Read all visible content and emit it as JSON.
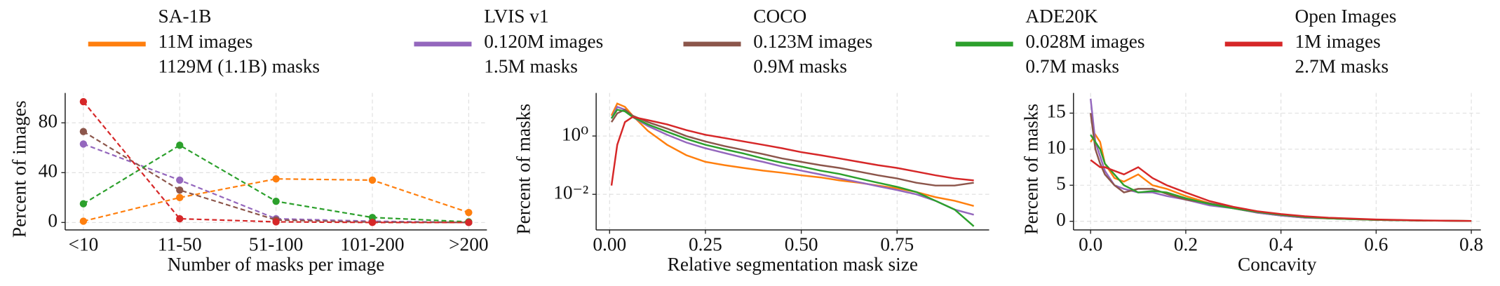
{
  "legend": {
    "entries": [
      {
        "name": "SA-1B",
        "color": "#ff7f0e",
        "lines": [
          "11M images",
          "1129M (1.1B) masks"
        ]
      },
      {
        "name": "LVIS v1",
        "color": "#9467bd",
        "lines": [
          "0.120M images",
          "1.5M masks"
        ]
      },
      {
        "name": "COCO",
        "color": "#8c564b",
        "lines": [
          "0.123M images",
          "0.9M masks"
        ]
      },
      {
        "name": "ADE20K",
        "color": "#2ca02c",
        "lines": [
          "0.028M images",
          "0.7M masks"
        ]
      },
      {
        "name": "Open Images",
        "color": "#d62728",
        "lines": [
          "1M images",
          "2.7M masks"
        ]
      }
    ]
  },
  "chart_data": [
    {
      "type": "line",
      "linestyle": "dashed",
      "markers": true,
      "grid": true,
      "x_label": "Number of masks per image",
      "y_label": "Percent of images",
      "categories": [
        "<10",
        "11-50",
        "51-100",
        "101-200",
        ">200"
      ],
      "ylim": [
        -6,
        104
      ],
      "yticks": [
        0,
        40,
        80
      ],
      "series": [
        {
          "color": "#ff7f0e",
          "values": [
            1,
            20,
            35,
            34,
            8
          ]
        },
        {
          "color": "#9467bd",
          "values": [
            63,
            34,
            3,
            1,
            0
          ]
        },
        {
          "color": "#8c564b",
          "values": [
            73,
            26,
            2,
            0.3,
            0
          ]
        },
        {
          "color": "#2ca02c",
          "values": [
            15,
            62,
            17,
            4,
            0.5
          ]
        },
        {
          "color": "#d62728",
          "values": [
            97,
            3,
            0.5,
            0,
            0
          ]
        }
      ]
    },
    {
      "type": "line",
      "log_y": true,
      "grid": true,
      "x_label": "Relative segmentation mask size",
      "y_label": "Percent of masks",
      "x": [
        0.005,
        0.02,
        0.04,
        0.06,
        0.1,
        0.15,
        0.2,
        0.25,
        0.3,
        0.35,
        0.4,
        0.45,
        0.5,
        0.55,
        0.6,
        0.65,
        0.7,
        0.75,
        0.8,
        0.85,
        0.9,
        0.95
      ],
      "xlim": [
        -0.035,
        0.99
      ],
      "xticks": [
        {
          "value": 0,
          "label": "0.00"
        },
        {
          "value": 0.25,
          "label": "0.25"
        },
        {
          "value": 0.5,
          "label": "0.50"
        },
        {
          "value": 0.75,
          "label": "0.75"
        }
      ],
      "ylim": [
        0.0006,
        30
      ],
      "yticks": [
        {
          "value": 1,
          "label": "10⁰"
        },
        {
          "value": 0.01,
          "label": "10⁻²"
        }
      ],
      "series": [
        {
          "color": "#ff7f0e",
          "values": [
            5,
            13,
            10,
            5,
            1.5,
            0.5,
            0.22,
            0.13,
            0.1,
            0.08,
            0.065,
            0.055,
            0.045,
            0.038,
            0.03,
            0.025,
            0.02,
            0.016,
            0.012,
            0.008,
            0.006,
            0.004
          ]
        },
        {
          "color": "#9467bd",
          "values": [
            4,
            10,
            8,
            4.5,
            2.2,
            1.1,
            0.6,
            0.38,
            0.26,
            0.18,
            0.13,
            0.09,
            0.065,
            0.048,
            0.035,
            0.026,
            0.019,
            0.014,
            0.01,
            0.006,
            0.003,
            0.002
          ]
        },
        {
          "color": "#8c564b",
          "values": [
            3,
            6,
            8,
            5,
            3,
            1.8,
            1.0,
            0.65,
            0.45,
            0.33,
            0.24,
            0.17,
            0.13,
            0.1,
            0.08,
            0.06,
            0.045,
            0.035,
            0.025,
            0.02,
            0.02,
            0.025
          ]
        },
        {
          "color": "#2ca02c",
          "values": [
            4,
            8,
            7,
            4.5,
            2.5,
            1.4,
            0.8,
            0.5,
            0.35,
            0.25,
            0.17,
            0.12,
            0.09,
            0.065,
            0.05,
            0.035,
            0.025,
            0.018,
            0.012,
            0.006,
            0.003,
            0.0008
          ]
        },
        {
          "color": "#d62728",
          "values": [
            0.02,
            0.5,
            3,
            4.5,
            3.5,
            2.5,
            1.6,
            1.1,
            0.85,
            0.65,
            0.5,
            0.38,
            0.28,
            0.22,
            0.17,
            0.13,
            0.1,
            0.08,
            0.06,
            0.045,
            0.035,
            0.03
          ]
        }
      ]
    },
    {
      "type": "line",
      "grid": true,
      "x_label": "Concavity",
      "y_label": "Percent of masks",
      "x": [
        0.0,
        0.01,
        0.02,
        0.03,
        0.05,
        0.07,
        0.1,
        0.13,
        0.16,
        0.2,
        0.25,
        0.3,
        0.35,
        0.4,
        0.45,
        0.5,
        0.6,
        0.7,
        0.8
      ],
      "xlim": [
        -0.036,
        0.82
      ],
      "xticks": [
        {
          "value": 0,
          "label": "0.0"
        },
        0.2,
        0.4,
        0.6,
        0.8
      ],
      "ylim": [
        -1.2,
        17.8
      ],
      "yticks": [
        0,
        5,
        10,
        15
      ],
      "series": [
        {
          "color": "#ff7f0e",
          "values": [
            11,
            12,
            11,
            8,
            6,
            5.5,
            6.5,
            5,
            4.5,
            3.5,
            2.5,
            1.8,
            1.2,
            0.8,
            0.5,
            0.4,
            0.2,
            0.1,
            0.05
          ]
        },
        {
          "color": "#9467bd",
          "values": [
            17,
            11,
            9,
            7,
            5,
            4.5,
            4,
            4,
            3.5,
            3,
            2.2,
            1.8,
            1.2,
            0.8,
            0.5,
            0.4,
            0.2,
            0.1,
            0.05
          ]
        },
        {
          "color": "#8c564b",
          "values": [
            15,
            10,
            8,
            6.5,
            5,
            4,
            4.5,
            4.5,
            3.8,
            3,
            2.5,
            1.9,
            1.3,
            0.9,
            0.6,
            0.4,
            0.2,
            0.1,
            0.05
          ]
        },
        {
          "color": "#2ca02c",
          "values": [
            12,
            11,
            10,
            8,
            6.5,
            5,
            4,
            4.2,
            4,
            3.2,
            2.4,
            1.8,
            1.3,
            0.9,
            0.6,
            0.4,
            0.2,
            0.1,
            0.05
          ]
        },
        {
          "color": "#d62728",
          "values": [
            8.5,
            8,
            7.5,
            7.5,
            7,
            6.5,
            7.5,
            6,
            5,
            4,
            2.8,
            2,
            1.4,
            1,
            0.7,
            0.5,
            0.25,
            0.12,
            0.05
          ]
        }
      ]
    }
  ]
}
